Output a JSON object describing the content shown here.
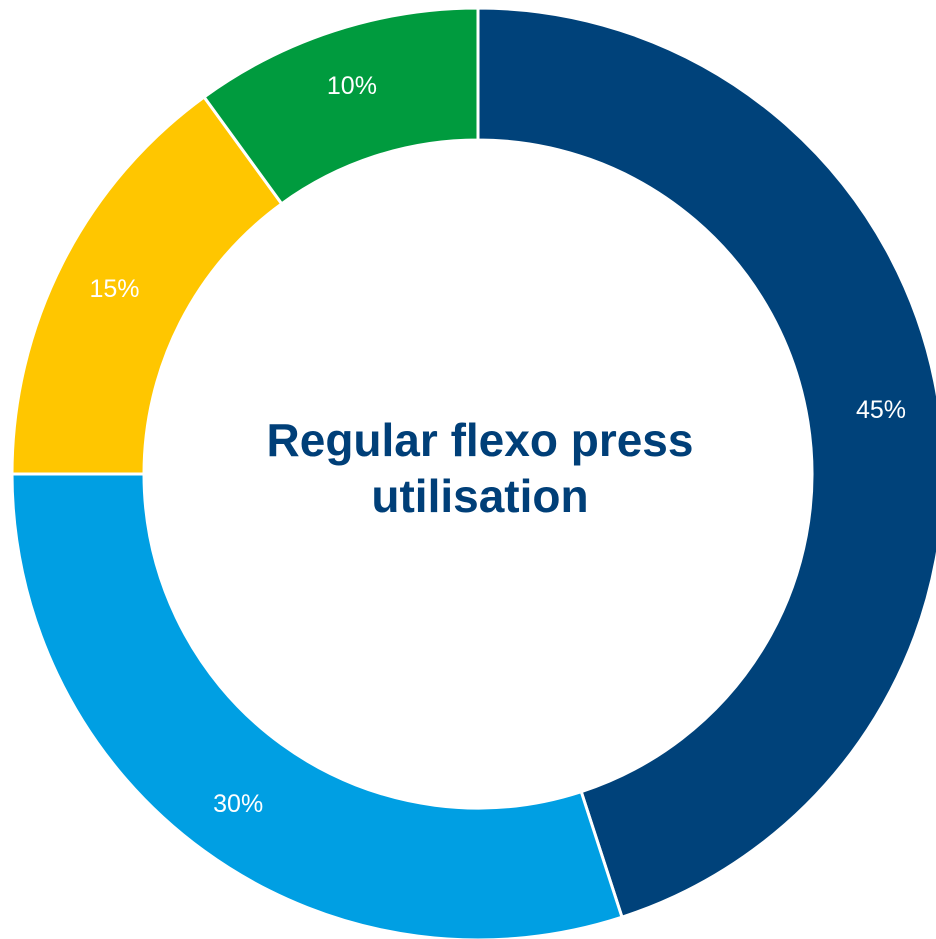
{
  "chart_data": {
    "type": "pie",
    "donut": true,
    "title_lines": [
      "Regular flexo press",
      "utilisation"
    ],
    "legend": "none",
    "slices": [
      {
        "value": 45,
        "label": "45%",
        "color": "#00427A"
      },
      {
        "value": 30,
        "label": "30%",
        "color": "#009FE3"
      },
      {
        "value": 15,
        "label": "15%",
        "color": "#FFC600"
      },
      {
        "value": 10,
        "label": "10%",
        "color": "#009B3E"
      }
    ],
    "start": "12 o'clock",
    "direction": "clockwise",
    "label_color": "#FFFFFF",
    "title_color": "#003F78"
  }
}
